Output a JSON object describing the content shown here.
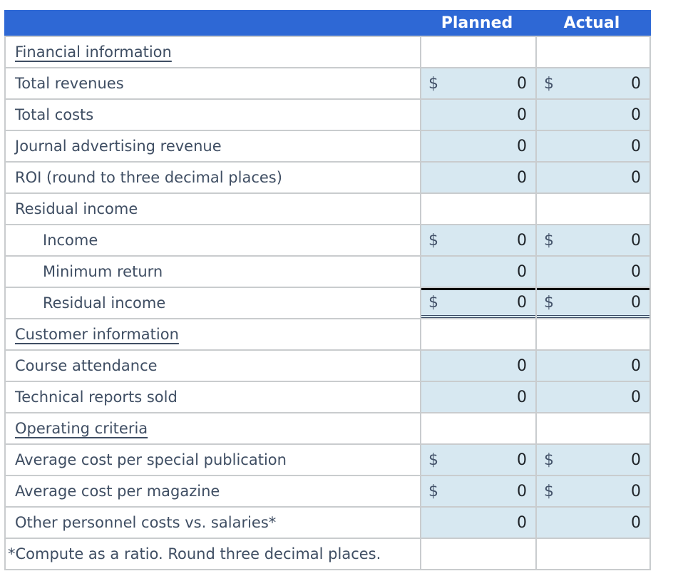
{
  "table": {
    "columns": {
      "planned": "Planned",
      "actual": "Actual"
    },
    "rows": [
      {
        "label": "Financial information",
        "type": "section"
      },
      {
        "label": "Total revenues",
        "type": "data",
        "dollar": true,
        "planned": "0",
        "actual": "0"
      },
      {
        "label": "Total costs",
        "type": "data",
        "dollar": false,
        "planned": "0",
        "actual": "0"
      },
      {
        "label": "Journal advertising revenue",
        "type": "data",
        "dollar": false,
        "planned": "0",
        "actual": "0"
      },
      {
        "label": "ROI (round to three decimal places)",
        "type": "data",
        "dollar": false,
        "planned": "0",
        "actual": "0"
      },
      {
        "label": "Residual income",
        "type": "label"
      },
      {
        "label": "Income",
        "type": "data",
        "indent": true,
        "dollar": true,
        "planned": "0",
        "actual": "0"
      },
      {
        "label": "Minimum return",
        "type": "data",
        "indent": true,
        "dollar": false,
        "planned": "0",
        "actual": "0"
      },
      {
        "label": "Residual income",
        "type": "data",
        "indent": true,
        "dollar": true,
        "planned": "0",
        "actual": "0",
        "black_line_above": true,
        "double_line_below": true
      },
      {
        "label": "Customer information",
        "type": "section"
      },
      {
        "label": "Course attendance",
        "type": "data",
        "dollar": false,
        "planned": "0",
        "actual": "0"
      },
      {
        "label": "Technical reports sold",
        "type": "data",
        "dollar": false,
        "planned": "0",
        "actual": "0"
      },
      {
        "label": "Operating criteria",
        "type": "section"
      },
      {
        "label": "Average cost per special publication",
        "type": "data",
        "dollar": true,
        "planned": "0",
        "actual": "0"
      },
      {
        "label": "Average cost per magazine",
        "type": "data",
        "dollar": true,
        "planned": "0",
        "actual": "0"
      },
      {
        "label": "Other personnel costs vs. salaries*",
        "type": "data",
        "dollar": false,
        "planned": "0",
        "actual": "0"
      },
      {
        "label": "*Compute as a ratio. Round three decimal places.",
        "type": "footnote"
      }
    ]
  },
  "colors": {
    "header_bg": "#2e68d5",
    "header_text": "#ffffff",
    "value_cell_bg": "#d7e8f1",
    "label_text": "#3f4e63",
    "value_text": "#1e2328",
    "gridline": "#c9ccce",
    "black_rule": "#000000",
    "double_rule": "#3a4a63"
  }
}
